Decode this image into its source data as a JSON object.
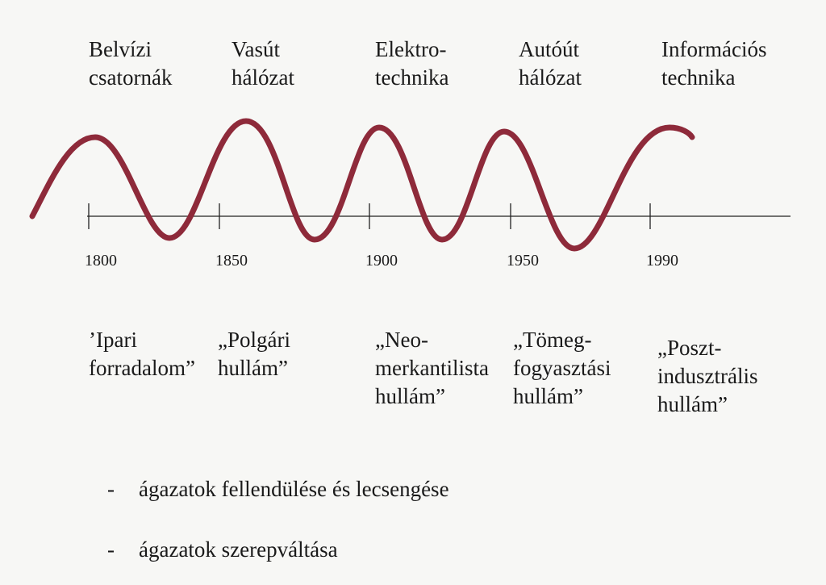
{
  "top_labels": [
    {
      "lines": [
        "Belvízi",
        "csatornák"
      ]
    },
    {
      "lines": [
        "Vasút",
        "hálózat"
      ]
    },
    {
      "lines": [
        "Elektro-",
        "technika"
      ]
    },
    {
      "lines": [
        "Autóút",
        "hálózat"
      ]
    },
    {
      "lines": [
        "Információs",
        "technika"
      ]
    }
  ],
  "timeline": {
    "years": [
      "1800",
      "1850",
      "1900",
      "1950",
      "1990"
    ]
  },
  "bottom_labels": [
    {
      "lines": [
        "’Ipari",
        "forradalom”"
      ]
    },
    {
      "lines": [
        "„Polgári",
        "hullám”"
      ]
    },
    {
      "lines": [
        "„Neo-",
        "merkantilista",
        "hullám”"
      ]
    },
    {
      "lines": [
        "„Tömeg-",
        "fogyasztási",
        "hullám”"
      ]
    },
    {
      "lines": [
        "„Poszt-",
        "indusztrális",
        "hullám”"
      ]
    }
  ],
  "bullets": [
    {
      "marker": "-",
      "text": "ágazatok fellendülése és lecsengése"
    },
    {
      "marker": "-",
      "text": "ágazatok szerepváltása"
    }
  ]
}
